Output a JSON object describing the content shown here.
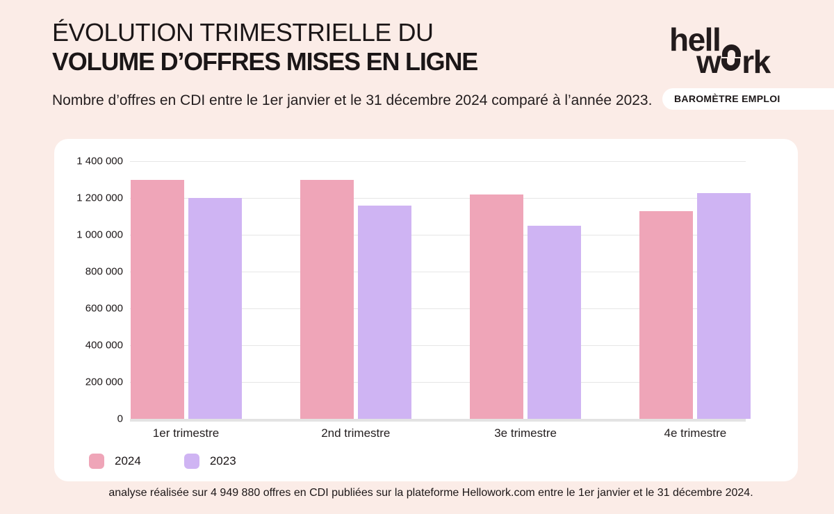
{
  "colors": {
    "background": "#FBECE7",
    "card": "#FFFFFF",
    "text_dark": "#1B1617",
    "series_2024": "#EFA5B8",
    "series_2023": "#CFB4F3"
  },
  "header": {
    "title_line1": "ÉVOLUTION TRIMESTRIELLE DU",
    "title_line2": "VOLUME D’OFFRES MISES EN LIGNE",
    "subtitle": "Nombre d’offres en CDI entre le 1er janvier et le 31 décembre 2024 comparé à l’année 2023.",
    "badge": "BAROMÈTRE EMPLOI",
    "logo": {
      "line1": "hell",
      "line2_pre": "w",
      "line2_post": "rk"
    }
  },
  "chart_data": {
    "type": "bar",
    "title": "",
    "xlabel": "",
    "ylabel": "",
    "categories": [
      "1er trimestre",
      "2nd trimestre",
      "3e trimestre",
      "4e trimestre"
    ],
    "series": [
      {
        "name": "2024",
        "color": "#EFA5B8",
        "values": [
          1300000,
          1300000,
          1220000,
          1130000
        ]
      },
      {
        "name": "2023",
        "color": "#CFB4F3",
        "values": [
          1200000,
          1160000,
          1050000,
          1225000
        ]
      }
    ],
    "ylim": [
      0,
      1400000
    ],
    "ytick_step": 200000,
    "ytick_labels": [
      "1 400 000",
      "1 200 000",
      "1 000 000",
      "800 000",
      "600 000",
      "400 000",
      "200 000",
      "0"
    ],
    "grid": true,
    "legend_position": "bottom-left"
  },
  "footer": {
    "note": "analyse réalisée sur 4 949 880 offres en CDI publiées sur la plateforme Hellowork.com entre le 1er janvier et le 31 décembre 2024."
  }
}
